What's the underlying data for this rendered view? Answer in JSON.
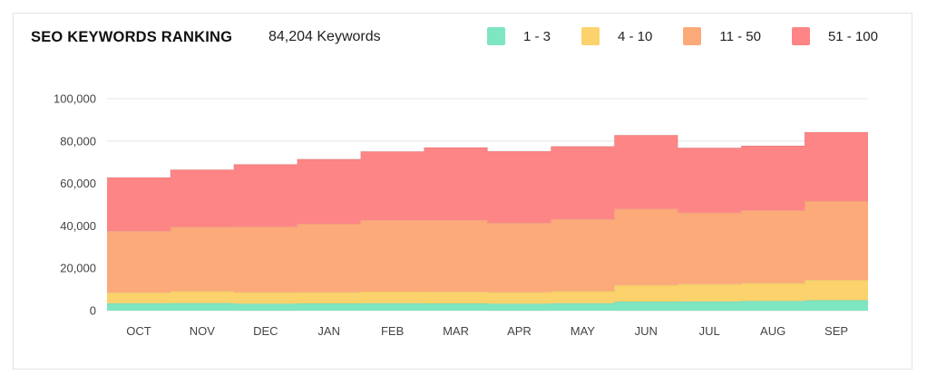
{
  "header": {
    "title": "SEO KEYWORDS RANKING",
    "subtitle": "84,204 Keywords"
  },
  "chart_data": {
    "type": "area",
    "stacked": true,
    "step": true,
    "title": "SEO KEYWORDS RANKING",
    "xlabel": "",
    "ylabel": "",
    "ylim": [
      0,
      100000
    ],
    "yticks": [
      0,
      20000,
      40000,
      60000,
      80000,
      100000
    ],
    "ytick_labels": [
      "0",
      "20,000",
      "40,000",
      "60,000",
      "80,000",
      "100,000"
    ],
    "grid": true,
    "legend_position": "top-right",
    "categories": [
      "OCT",
      "NOV",
      "DEC",
      "JAN",
      "FEB",
      "MAR",
      "APR",
      "MAY",
      "JUN",
      "JUL",
      "AUG",
      "SEP"
    ],
    "series": [
      {
        "name": "1 - 3",
        "color": "#7ee6c0",
        "values": [
          3500,
          3600,
          3300,
          3400,
          3500,
          3400,
          3300,
          3500,
          4300,
          4400,
          4600,
          4900
        ]
      },
      {
        "name": "4 - 10",
        "color": "#fbd26b",
        "values": [
          5000,
          5600,
          5300,
          5300,
          5500,
          5500,
          5400,
          5700,
          7700,
          8100,
          8400,
          9500
        ]
      },
      {
        "name": "11 - 50",
        "color": "#fcaa7a",
        "values": [
          29000,
          30300,
          31000,
          32300,
          33700,
          33800,
          32600,
          33900,
          36000,
          33700,
          34300,
          37300
        ]
      },
      {
        "name": "51 - 100",
        "color": "#fd8585",
        "values": [
          25300,
          27000,
          29400,
          30500,
          32400,
          34300,
          33900,
          34400,
          34800,
          30600,
          30500,
          32500
        ]
      }
    ]
  }
}
